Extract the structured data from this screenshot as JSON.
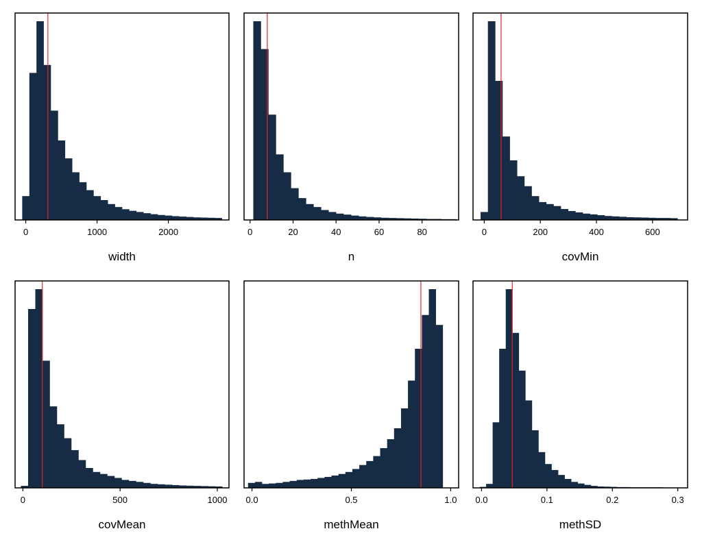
{
  "figure": {
    "background": "#ffffff",
    "bar_color": "#162b44",
    "reference_line_color": "#e3262b"
  },
  "chart_data": [
    {
      "type": "bar",
      "xlabel": "width",
      "xlim": [
        -150,
        2850
      ],
      "ylim": [
        0,
        1.0
      ],
      "yaxis_labels": false,
      "xticks": [
        0,
        1000,
        2000
      ],
      "xtick_labels": [
        "0",
        "1000",
        "2000"
      ],
      "bin_width": 100,
      "bin_start": -50,
      "values": [
        0.12,
        0.74,
        1.0,
        0.78,
        0.55,
        0.4,
        0.31,
        0.24,
        0.19,
        0.15,
        0.12,
        0.1,
        0.08,
        0.065,
        0.054,
        0.046,
        0.04,
        0.034,
        0.029,
        0.025,
        0.022,
        0.019,
        0.017,
        0.015,
        0.013,
        0.012,
        0.011,
        0.01
      ],
      "reference_line": 310
    },
    {
      "type": "bar",
      "xlabel": "n",
      "xlim": [
        -2.8,
        97
      ],
      "ylim": [
        0,
        1.0
      ],
      "yaxis_labels": false,
      "xticks": [
        0,
        20,
        40,
        60,
        80
      ],
      "xtick_labels": [
        "0",
        "20",
        "40",
        "60",
        "80"
      ],
      "bin_width": 3.5,
      "bin_start": 1.5,
      "values": [
        1.0,
        0.86,
        0.53,
        0.33,
        0.24,
        0.16,
        0.11,
        0.08,
        0.065,
        0.05,
        0.04,
        0.032,
        0.027,
        0.022,
        0.018,
        0.015,
        0.013,
        0.011,
        0.01,
        0.009,
        0.008,
        0.007,
        0.006,
        0.005,
        0.005,
        0.004,
        0.004
      ],
      "reference_line": 8
    },
    {
      "type": "bar",
      "xlabel": "covMin",
      "xlim": [
        -40,
        725
      ],
      "ylim": [
        0,
        1.0
      ],
      "yaxis_labels": false,
      "xticks": [
        0,
        200,
        400,
        600
      ],
      "xtick_labels": [
        "0",
        "200",
        "400",
        "600"
      ],
      "bin_width": 26,
      "bin_start": -13,
      "values": [
        0.04,
        1.0,
        0.7,
        0.42,
        0.3,
        0.22,
        0.17,
        0.12,
        0.09,
        0.08,
        0.07,
        0.055,
        0.045,
        0.038,
        0.032,
        0.028,
        0.024,
        0.02,
        0.018,
        0.016,
        0.014,
        0.013,
        0.012,
        0.011,
        0.01,
        0.01,
        0.009
      ],
      "reference_line": 60
    },
    {
      "type": "bar",
      "xlabel": "covMean",
      "xlim": [
        -40,
        1060
      ],
      "ylim": [
        0,
        1.0
      ],
      "yaxis_labels": false,
      "xticks": [
        0,
        500,
        1000
      ],
      "xtick_labels": [
        "0",
        "500",
        "1000"
      ],
      "bin_width": 37,
      "bin_start": -10,
      "values": [
        0.01,
        0.9,
        1.0,
        0.64,
        0.41,
        0.32,
        0.25,
        0.19,
        0.14,
        0.1,
        0.08,
        0.07,
        0.06,
        0.05,
        0.04,
        0.035,
        0.03,
        0.025,
        0.02,
        0.018,
        0.016,
        0.014,
        0.012,
        0.011,
        0.01,
        0.009,
        0.008,
        0.007
      ],
      "reference_line": 100
    },
    {
      "type": "bar",
      "xlabel": "methMean",
      "xlim": [
        -0.04,
        1.04
      ],
      "ylim": [
        0,
        1.0
      ],
      "yaxis_labels": false,
      "xticks": [
        0.0,
        0.5,
        1.0
      ],
      "xtick_labels": [
        "0.0",
        "0.5",
        "1.0"
      ],
      "bin_width": 0.035,
      "bin_start": -0.02,
      "values": [
        0.025,
        0.03,
        0.02,
        0.022,
        0.025,
        0.03,
        0.035,
        0.04,
        0.042,
        0.045,
        0.05,
        0.055,
        0.062,
        0.07,
        0.08,
        0.095,
        0.115,
        0.135,
        0.16,
        0.2,
        0.245,
        0.3,
        0.4,
        0.54,
        0.7,
        0.87,
        1.0,
        0.82
      ],
      "reference_line": 0.85
    },
    {
      "type": "bar",
      "xlabel": "methSD",
      "xlim": [
        -0.013,
        0.315
      ],
      "ylim": [
        0,
        1.0
      ],
      "yaxis_labels": false,
      "xticks": [
        0.0,
        0.1,
        0.2,
        0.3
      ],
      "xtick_labels": [
        "0.0",
        "0.1",
        "0.2",
        "0.3"
      ],
      "bin_width": 0.01,
      "bin_start": -0.003,
      "values": [
        0.005,
        0.02,
        0.33,
        0.7,
        1.0,
        0.78,
        0.59,
        0.44,
        0.29,
        0.18,
        0.12,
        0.09,
        0.065,
        0.045,
        0.03,
        0.022,
        0.015,
        0.01,
        0.007,
        0.006,
        0.005,
        0.004,
        0.004,
        0.003,
        0.003,
        0.003,
        0.003,
        0.003,
        0.002,
        0.002,
        0.002
      ],
      "reference_line": 0.047
    }
  ]
}
